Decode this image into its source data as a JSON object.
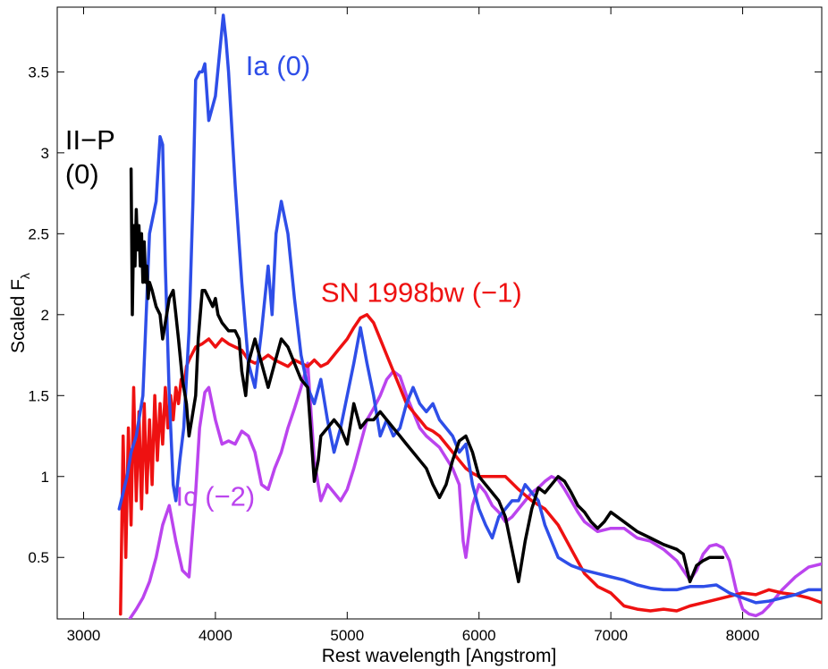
{
  "chart_data": {
    "type": "line",
    "title": "",
    "xlabel": "Rest wavelength [Angstrom]",
    "ylabel": "Scaled F",
    "ylabel_subscript": "λ",
    "xlim": [
      2800,
      8600
    ],
    "ylim": [
      0.12,
      3.9
    ],
    "xticks": [
      3000,
      4000,
      5000,
      6000,
      7000,
      8000
    ],
    "yticks": [
      0.5,
      1,
      1.5,
      2,
      2.5,
      3,
      3.5
    ],
    "grid": false,
    "series": [
      {
        "name": "Ic (-2)",
        "label_lines": [
          "Ic (−2)"
        ],
        "color": "#bb44ee",
        "x": [
          3300,
          3350,
          3400,
          3450,
          3500,
          3550,
          3600,
          3650,
          3700,
          3750,
          3800,
          3850,
          3880,
          3920,
          3950,
          4000,
          4050,
          4100,
          4150,
          4200,
          4250,
          4300,
          4350,
          4400,
          4450,
          4500,
          4550,
          4600,
          4650,
          4700,
          4750,
          4800,
          4850,
          4900,
          4950,
          5000,
          5050,
          5100,
          5150,
          5200,
          5250,
          5300,
          5350,
          5400,
          5450,
          5500,
          5550,
          5600,
          5700,
          5800,
          5850,
          5880,
          5900,
          5950,
          6000,
          6050,
          6100,
          6150,
          6200,
          6250,
          6300,
          6350,
          6400,
          6450,
          6500,
          6550,
          6600,
          6650,
          6700,
          6750,
          6800,
          6900,
          7000,
          7100,
          7200,
          7300,
          7400,
          7500,
          7550,
          7600,
          7650,
          7700,
          7750,
          7800,
          7850,
          7900,
          7950,
          8000,
          8050,
          8100,
          8150,
          8200,
          8300,
          8400,
          8500,
          8600
        ],
        "y": [
          0.05,
          0.12,
          0.18,
          0.25,
          0.35,
          0.5,
          0.7,
          0.82,
          0.6,
          0.42,
          0.38,
          0.9,
          1.3,
          1.52,
          1.55,
          1.35,
          1.2,
          1.22,
          1.2,
          1.28,
          1.25,
          1.15,
          0.95,
          0.92,
          1.05,
          1.15,
          1.3,
          1.42,
          1.55,
          1.7,
          1.1,
          0.85,
          0.95,
          0.9,
          0.85,
          0.92,
          1.05,
          1.2,
          1.35,
          1.42,
          1.5,
          1.6,
          1.65,
          1.62,
          1.5,
          1.4,
          1.3,
          1.25,
          1.18,
          1.05,
          0.95,
          0.6,
          0.5,
          0.82,
          0.95,
          0.9,
          0.82,
          0.78,
          0.72,
          0.75,
          0.8,
          0.85,
          0.9,
          0.93,
          0.97,
          1.0,
          0.98,
          0.92,
          0.85,
          0.78,
          0.72,
          0.66,
          0.68,
          0.68,
          0.62,
          0.6,
          0.55,
          0.48,
          0.42,
          0.36,
          0.42,
          0.52,
          0.57,
          0.58,
          0.56,
          0.48,
          0.3,
          0.18,
          0.15,
          0.14,
          0.16,
          0.2,
          0.3,
          0.38,
          0.44,
          0.46
        ]
      },
      {
        "name": "SN 1998bw (-1)",
        "label_lines": [
          "SN 1998bw (−1)"
        ],
        "color": "#ee1111",
        "x": [
          3280,
          3300,
          3320,
          3340,
          3360,
          3380,
          3400,
          3420,
          3440,
          3460,
          3480,
          3500,
          3520,
          3540,
          3560,
          3580,
          3600,
          3620,
          3640,
          3660,
          3680,
          3700,
          3720,
          3740,
          3760,
          3780,
          3800,
          3850,
          3900,
          3950,
          4000,
          4050,
          4100,
          4150,
          4200,
          4250,
          4300,
          4350,
          4400,
          4450,
          4500,
          4550,
          4600,
          4650,
          4700,
          4750,
          4800,
          4850,
          4900,
          4950,
          5000,
          5050,
          5100,
          5150,
          5200,
          5250,
          5300,
          5350,
          5400,
          5450,
          5500,
          5550,
          5600,
          5650,
          5700,
          5750,
          5800,
          5850,
          5900,
          5950,
          6000,
          6100,
          6200,
          6300,
          6400,
          6500,
          6600,
          6700,
          6800,
          6900,
          7000,
          7100,
          7200,
          7300,
          7400,
          7500,
          7600,
          7700,
          7800,
          7900,
          8000,
          8100,
          8200,
          8300,
          8400,
          8500,
          8600
        ],
        "y": [
          0.15,
          1.25,
          0.5,
          1.3,
          0.7,
          1.55,
          0.85,
          1.4,
          0.8,
          1.45,
          0.9,
          1.35,
          0.95,
          1.5,
          1.1,
          1.45,
          1.2,
          1.55,
          1.3,
          1.5,
          1.35,
          1.55,
          1.45,
          1.6,
          1.55,
          1.68,
          1.72,
          1.8,
          1.82,
          1.85,
          1.8,
          1.85,
          1.82,
          1.8,
          1.78,
          1.72,
          1.7,
          1.72,
          1.75,
          1.72,
          1.7,
          1.68,
          1.72,
          1.7,
          1.68,
          1.72,
          1.68,
          1.7,
          1.75,
          1.8,
          1.85,
          1.92,
          1.98,
          2.0,
          1.95,
          1.85,
          1.75,
          1.65,
          1.55,
          1.45,
          1.4,
          1.35,
          1.3,
          1.28,
          1.25,
          1.2,
          1.15,
          1.1,
          1.05,
          1.02,
          1.0,
          1.0,
          1.0,
          0.92,
          0.85,
          0.8,
          0.7,
          0.55,
          0.4,
          0.32,
          0.28,
          0.2,
          0.18,
          0.17,
          0.18,
          0.17,
          0.2,
          0.22,
          0.24,
          0.26,
          0.28,
          0.27,
          0.3,
          0.28,
          0.27,
          0.25,
          0.22
        ]
      },
      {
        "name": "Ia (0)",
        "label_lines": [
          "Ia (0)"
        ],
        "color": "#2e4ee8",
        "x": [
          3270,
          3300,
          3330,
          3360,
          3400,
          3450,
          3500,
          3550,
          3580,
          3600,
          3620,
          3650,
          3680,
          3700,
          3730,
          3760,
          3800,
          3830,
          3850,
          3880,
          3900,
          3920,
          3950,
          4000,
          4030,
          4060,
          4080,
          4100,
          4150,
          4200,
          4250,
          4300,
          4350,
          4400,
          4430,
          4460,
          4500,
          4550,
          4600,
          4650,
          4700,
          4750,
          4800,
          4850,
          4900,
          4950,
          5000,
          5050,
          5100,
          5150,
          5200,
          5250,
          5300,
          5350,
          5400,
          5450,
          5500,
          5550,
          5600,
          5650,
          5700,
          5750,
          5800,
          5850,
          5900,
          5950,
          6000,
          6050,
          6100,
          6150,
          6200,
          6250,
          6300,
          6350,
          6400,
          6450,
          6500,
          6550,
          6600,
          6700,
          6800,
          6900,
          7000,
          7100,
          7200,
          7300,
          7400,
          7500,
          7600,
          7700,
          7800,
          7900,
          8000,
          8100,
          8200,
          8300,
          8400,
          8500,
          8600
        ],
        "y": [
          0.8,
          0.9,
          1.0,
          1.15,
          1.25,
          1.5,
          2.5,
          2.7,
          3.1,
          3.05,
          2.3,
          1.5,
          0.95,
          0.85,
          1.1,
          1.3,
          1.9,
          2.7,
          3.45,
          3.5,
          3.5,
          3.55,
          3.2,
          3.35,
          3.6,
          3.85,
          3.7,
          3.5,
          2.8,
          2.2,
          1.7,
          1.55,
          1.9,
          2.3,
          2.0,
          2.5,
          2.7,
          2.5,
          2.1,
          1.75,
          1.55,
          1.45,
          1.6,
          1.35,
          1.15,
          1.3,
          1.5,
          1.7,
          1.92,
          1.7,
          1.5,
          1.25,
          1.35,
          1.25,
          1.3,
          1.45,
          1.55,
          1.45,
          1.4,
          1.45,
          1.35,
          1.3,
          1.25,
          1.15,
          1.2,
          0.95,
          0.8,
          0.7,
          0.62,
          0.75,
          0.8,
          0.85,
          0.85,
          0.95,
          0.9,
          0.85,
          0.7,
          0.6,
          0.5,
          0.45,
          0.42,
          0.4,
          0.38,
          0.36,
          0.33,
          0.31,
          0.3,
          0.3,
          0.32,
          0.32,
          0.33,
          0.28,
          0.25,
          0.22,
          0.23,
          0.25,
          0.27,
          0.3,
          0.3
        ]
      },
      {
        "name": "II-P (0)",
        "label_lines": [
          "II−P",
          "(0)"
        ],
        "color": "#000000",
        "x": [
          3360,
          3370,
          3380,
          3390,
          3400,
          3410,
          3420,
          3430,
          3440,
          3450,
          3460,
          3470,
          3480,
          3490,
          3500,
          3520,
          3550,
          3580,
          3600,
          3630,
          3650,
          3680,
          3700,
          3720,
          3750,
          3780,
          3800,
          3820,
          3850,
          3870,
          3900,
          3920,
          3950,
          3980,
          4000,
          4020,
          4050,
          4100,
          4150,
          4180,
          4200,
          4230,
          4250,
          4300,
          4350,
          4400,
          4450,
          4500,
          4550,
          4600,
          4650,
          4700,
          4750,
          4780,
          4800,
          4850,
          4900,
          4950,
          5000,
          5050,
          5100,
          5150,
          5200,
          5250,
          5300,
          5350,
          5400,
          5450,
          5500,
          5550,
          5600,
          5650,
          5700,
          5750,
          5800,
          5850,
          5900,
          5950,
          6000,
          6050,
          6100,
          6150,
          6200,
          6250,
          6300,
          6350,
          6400,
          6450,
          6500,
          6550,
          6600,
          6650,
          6700,
          6750,
          6800,
          6850,
          6900,
          6950,
          7000,
          7100,
          7200,
          7300,
          7400,
          7500,
          7550,
          7600,
          7650,
          7700,
          7750,
          7800,
          7850
        ],
        "y": [
          2.9,
          2.0,
          2.55,
          2.3,
          2.65,
          2.4,
          2.55,
          2.3,
          2.5,
          2.2,
          2.45,
          2.2,
          2.3,
          2.1,
          2.2,
          2.15,
          2.05,
          2.0,
          1.85,
          2.0,
          2.1,
          2.15,
          2.0,
          1.85,
          1.6,
          1.45,
          1.25,
          1.35,
          1.5,
          1.85,
          2.15,
          2.15,
          2.1,
          2.05,
          2.1,
          2.0,
          1.95,
          1.9,
          1.9,
          1.85,
          1.65,
          1.5,
          1.7,
          1.85,
          1.7,
          1.55,
          1.7,
          1.85,
          1.8,
          1.7,
          1.6,
          1.55,
          0.97,
          1.1,
          1.25,
          1.3,
          1.35,
          1.3,
          1.2,
          1.45,
          1.3,
          1.35,
          1.35,
          1.4,
          1.35,
          1.3,
          1.25,
          1.2,
          1.15,
          1.1,
          1.05,
          0.95,
          0.87,
          0.95,
          1.1,
          1.22,
          1.25,
          1.15,
          1.0,
          0.95,
          0.9,
          0.85,
          0.75,
          0.55,
          0.35,
          0.6,
          0.8,
          0.93,
          0.9,
          0.95,
          1.0,
          0.97,
          0.9,
          0.82,
          0.78,
          0.72,
          0.68,
          0.72,
          0.78,
          0.72,
          0.66,
          0.62,
          0.58,
          0.55,
          0.52,
          0.35,
          0.45,
          0.48,
          0.5,
          0.5,
          0.5
        ]
      }
    ]
  }
}
